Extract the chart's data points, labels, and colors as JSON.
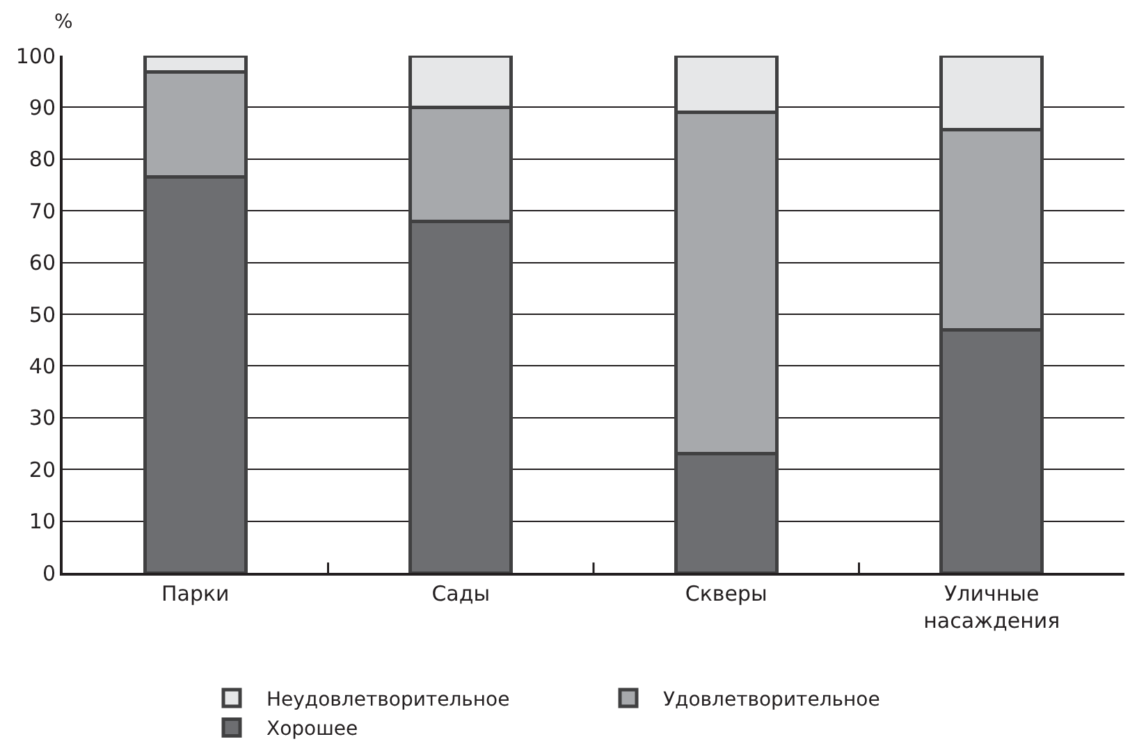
{
  "chart_data": {
    "type": "bar",
    "stacked": true,
    "ylabel": "%",
    "categories": [
      "Парки",
      "Сады",
      "Скверы",
      "Уличные\nнасаждения"
    ],
    "series": [
      {
        "name": "Хорошее",
        "color": "#6d6e71",
        "values": [
          76.5,
          68,
          23,
          47
        ]
      },
      {
        "name": "Удовлетворительное",
        "color": "#a7a9ac",
        "values": [
          20.3,
          22,
          66,
          38.7
        ]
      },
      {
        "name": "Неудовлетворительное",
        "color": "#e6e7e8",
        "values": [
          3.2,
          10,
          11,
          14.3
        ]
      }
    ],
    "ylim": [
      0,
      100
    ],
    "yticks": [
      0,
      10,
      20,
      30,
      40,
      50,
      60,
      70,
      80,
      90,
      100
    ],
    "grid": "y",
    "legend": "bottom"
  }
}
